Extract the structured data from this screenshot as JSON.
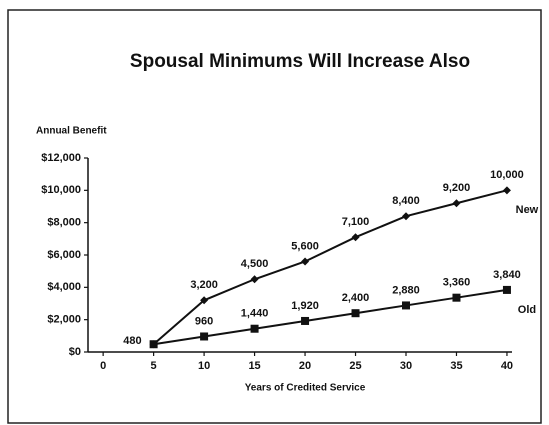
{
  "chart_data": {
    "type": "line",
    "title": "Spousal Minimums Will Increase Also",
    "y_label": "Annual Benefit",
    "x_label": "Years of Credited Service",
    "x": [
      5,
      10,
      15,
      20,
      25,
      30,
      35,
      40
    ],
    "series": [
      {
        "name": "New",
        "color": "#111111",
        "marker": "diamond",
        "values": [
          480,
          3200,
          4500,
          5600,
          7100,
          8400,
          9200,
          10000
        ],
        "value_labels": [
          "480",
          "3,200",
          "4,500",
          "5,600",
          "7,100",
          "8,400",
          "9,200",
          "10,000"
        ]
      },
      {
        "name": "Old",
        "color": "#111111",
        "marker": "square",
        "values": [
          480,
          960,
          1440,
          1920,
          2400,
          2880,
          3360,
          3840
        ],
        "value_labels": [
          null,
          "960",
          "1,440",
          "1,920",
          "2,400",
          "2,880",
          "3,360",
          "3,840"
        ]
      }
    ],
    "xlim": [
      -1.5,
      40.5
    ],
    "xticks": [
      0,
      5,
      10,
      15,
      20,
      25,
      30,
      35,
      40
    ],
    "ylim": [
      0,
      12000
    ],
    "yticks": [
      {
        "value": 0,
        "label": "$0"
      },
      {
        "value": 2000,
        "label": "$2,000"
      },
      {
        "value": 4000,
        "label": "$4,000"
      },
      {
        "value": 6000,
        "label": "$6,000"
      },
      {
        "value": 8000,
        "label": "$8,000"
      },
      {
        "value": 10000,
        "label": "$10,000"
      },
      {
        "value": 12000,
        "label": "$12,000"
      }
    ]
  }
}
